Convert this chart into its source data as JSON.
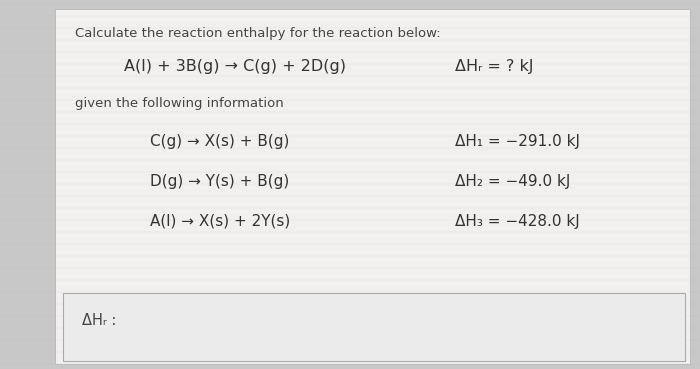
{
  "bg_color": "#c8c8c8",
  "card_color": "#f2f0ef",
  "answer_box_color": "#ebebeb",
  "title": "Calculate the reaction enthalpy for the reaction below:",
  "main_reaction_left": "A(l) + 3B(g) → C(g) + 2D(g)",
  "main_reaction_right": "ΔHᵣ = ? kJ",
  "given_text": "given the following information",
  "reactions": [
    "C(g) → X(s) + B(g)",
    "D(g) → Y(s) + B(g)",
    "A(l) → X(s) + 2Y(s)"
  ],
  "enthalpy_labels_exact": [
    "ΔH₁ = −291.0 kJ",
    "ΔH₂ = −49.0 kJ",
    "ΔH₃ = −428.0 kJ"
  ],
  "answer_label": "ΔHᵣ :"
}
